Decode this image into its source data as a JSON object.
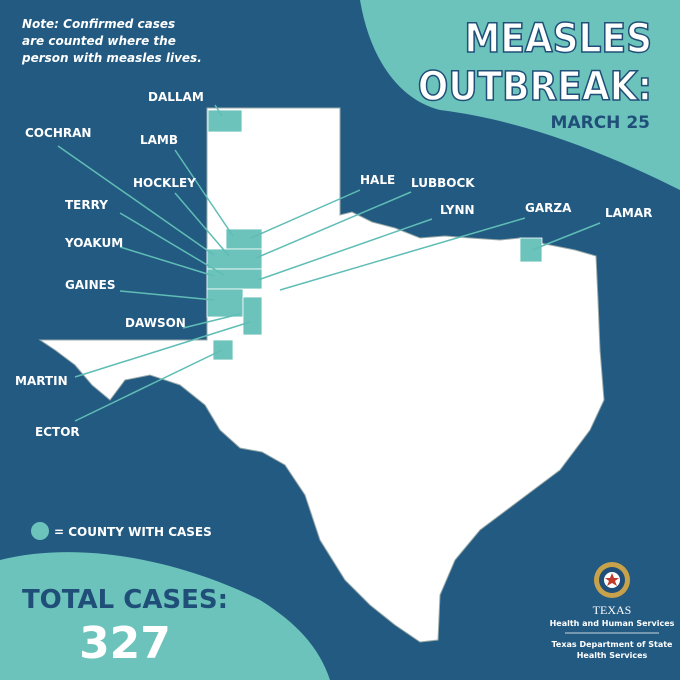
{
  "note": [
    "Note: Confirmed cases",
    "are counted where the",
    "person with measles lives."
  ],
  "title": [
    "MEASLES",
    "OUTBREAK:"
  ],
  "date": "MARCH 25",
  "counties": [
    "DALLAM",
    "COCHRAN",
    "LAMB",
    "HOCKLEY",
    "TERRY",
    "YOAKUM",
    "GAINES",
    "DAWSON",
    "MARTIN",
    "ECTOR",
    "HALE",
    "LUBBOCK",
    "LYNN",
    "GARZA",
    "LAMAR"
  ],
  "legend": "= COUNTY WITH CASES",
  "total": {
    "label": "TOTAL CASES:",
    "value": 327
  },
  "logo": {
    "name": "TEXAS",
    "subtitle": "Health and Human Services",
    "agency": [
      "Texas Department of State",
      "Health Services"
    ]
  }
}
